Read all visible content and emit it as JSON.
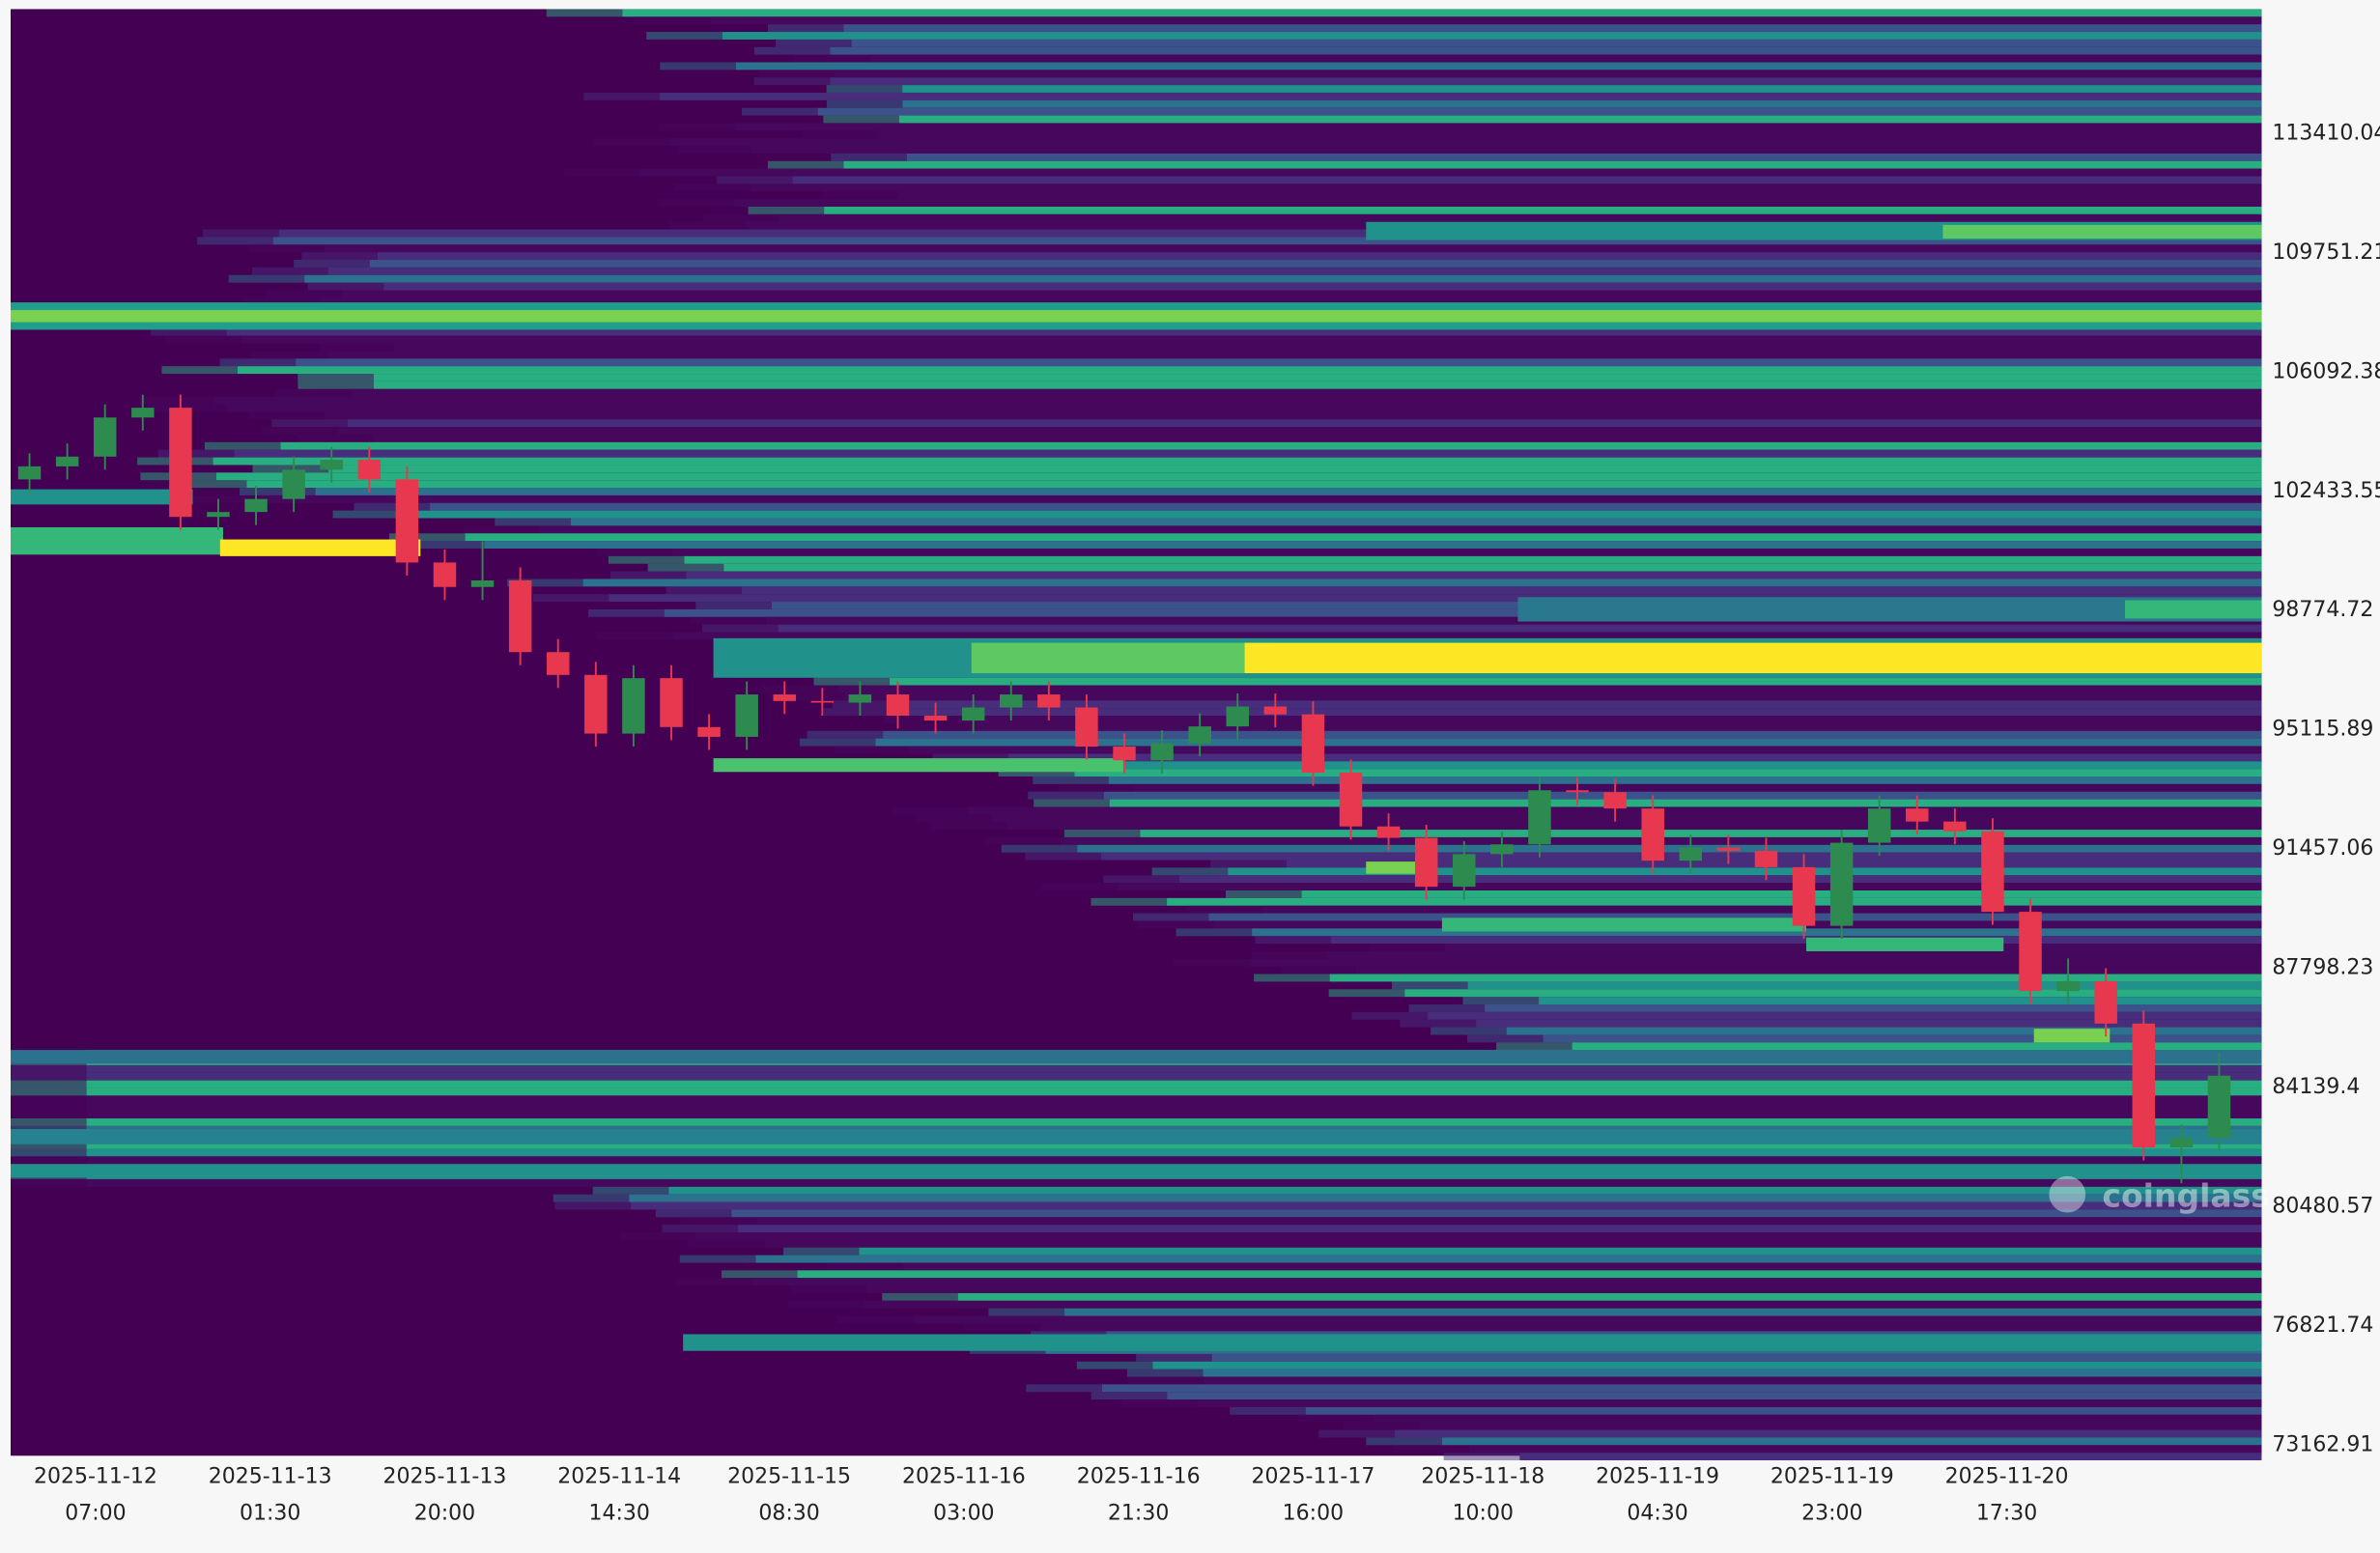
{
  "chart_data": {
    "type": "candlestick",
    "watermark": "coinglass",
    "xlim": [
      "2025-11-11 22:00",
      "2025-11-21 20:30"
    ],
    "xticks": [
      "2025-11-12 07:00",
      "2025-11-13 01:30",
      "2025-11-13 20:00",
      "2025-11-14 14:30",
      "2025-11-15 08:30",
      "2025-11-16 03:00",
      "2025-11-16 21:30",
      "2025-11-17 16:00",
      "2025-11-18 10:00",
      "2025-11-19 04:30",
      "2025-11-19 23:00",
      "2025-11-20 17:30"
    ],
    "ylim": [
      72836,
      117234
    ],
    "yticks": [
      113410.04,
      109751.21,
      106092.38,
      102433.55,
      98774.72,
      95115.89,
      91457.06,
      87798.23,
      84139.4,
      80480.57,
      76821.74,
      73162.91
    ],
    "grid": false,
    "up_color": "#2e8b4f",
    "down_color": "#e8384f",
    "x": [
      "2025-11-11 22:00",
      "2025-11-12 02:00",
      "2025-11-12 06:00",
      "2025-11-12 10:00",
      "2025-11-12 14:00",
      "2025-11-12 18:00",
      "2025-11-12 22:00",
      "2025-11-13 02:00",
      "2025-11-13 06:00",
      "2025-11-13 10:00",
      "2025-11-13 14:00",
      "2025-11-13 18:00",
      "2025-11-13 22:00",
      "2025-11-14 02:00",
      "2025-11-14 06:00",
      "2025-11-14 10:00",
      "2025-11-14 14:00",
      "2025-11-14 18:00",
      "2025-11-14 22:00",
      "2025-11-15 02:00",
      "2025-11-15 06:00",
      "2025-11-15 10:00",
      "2025-11-15 14:00",
      "2025-11-15 18:00",
      "2025-11-15 22:00",
      "2025-11-16 02:00",
      "2025-11-16 06:00",
      "2025-11-16 10:00",
      "2025-11-16 14:00",
      "2025-11-16 18:00",
      "2025-11-16 22:00",
      "2025-11-17 02:00",
      "2025-11-17 06:00",
      "2025-11-17 10:00",
      "2025-11-17 14:00",
      "2025-11-17 18:00",
      "2025-11-17 22:00",
      "2025-11-18 02:00",
      "2025-11-18 06:00",
      "2025-11-18 10:00",
      "2025-11-18 14:00",
      "2025-11-18 18:00",
      "2025-11-18 22:00",
      "2025-11-19 02:00",
      "2025-11-19 06:00",
      "2025-11-19 10:00",
      "2025-11-19 14:00",
      "2025-11-19 18:00",
      "2025-11-19 22:00",
      "2025-11-20 02:00",
      "2025-11-20 06:00",
      "2025-11-20 10:00",
      "2025-11-20 14:00",
      "2025-11-20 18:00",
      "2025-11-20 22:00",
      "2025-11-21 02:00",
      "2025-11-21 06:00",
      "2025-11-21 10:00",
      "2025-11-21 14:00"
    ],
    "open": [
      102800,
      103200,
      103500,
      104700,
      105000,
      101650,
      101800,
      102200,
      103100,
      103400,
      102800,
      100250,
      99500,
      99700,
      97500,
      96800,
      95000,
      96700,
      95200,
      94900,
      96200,
      96000,
      95950,
      96200,
      95550,
      95400,
      95800,
      96200,
      95800,
      94600,
      94180,
      94700,
      95220,
      95830,
      95590,
      93800,
      92150,
      91800,
      90300,
      91300,
      91600,
      93260,
      93200,
      92700,
      91100,
      91500,
      91400,
      90900,
      89100,
      91650,
      92700,
      92300,
      92000,
      89530,
      87100,
      87400,
      86100,
      82300,
      82600
    ],
    "high": [
      103600,
      103900,
      105100,
      105400,
      105400,
      102200,
      102600,
      103500,
      103800,
      103800,
      103200,
      100650,
      100900,
      100100,
      97900,
      97200,
      97100,
      97100,
      95600,
      96600,
      96600,
      96400,
      96600,
      96600,
      95950,
      96200,
      96600,
      96600,
      96200,
      95000,
      95100,
      95620,
      96230,
      96230,
      95990,
      94200,
      92550,
      92200,
      91700,
      92000,
      93660,
      93660,
      93600,
      93100,
      91900,
      91900,
      91800,
      91300,
      92050,
      93100,
      93100,
      92700,
      92400,
      89930,
      88100,
      87800,
      86500,
      83000,
      85200
    ],
    "low": [
      102400,
      102800,
      103100,
      104300,
      101250,
      101250,
      101400,
      101800,
      102700,
      102400,
      99850,
      99100,
      99100,
      97100,
      96400,
      94600,
      94600,
      94800,
      94500,
      94500,
      95600,
      95550,
      95550,
      95150,
      95000,
      95000,
      95400,
      95400,
      94200,
      93780,
      93780,
      94300,
      94820,
      95190,
      93400,
      91750,
      91400,
      89900,
      89900,
      90900,
      91200,
      92800,
      92300,
      90700,
      90700,
      91000,
      90500,
      88700,
      88700,
      91250,
      91900,
      91600,
      89130,
      86700,
      86700,
      85700,
      81900,
      81200,
      82200
    ],
    "close": [
      103200,
      103500,
      104700,
      105000,
      101650,
      101800,
      102200,
      103100,
      103400,
      102800,
      100250,
      99500,
      99700,
      97500,
      96800,
      95000,
      96700,
      95200,
      94900,
      96200,
      96000,
      95950,
      96200,
      95550,
      95400,
      95800,
      96200,
      95800,
      94600,
      94180,
      94700,
      95220,
      95830,
      95590,
      93800,
      92150,
      91800,
      90300,
      91300,
      91600,
      93260,
      93200,
      92700,
      91100,
      91500,
      91400,
      90900,
      89100,
      91650,
      92700,
      92300,
      92000,
      89530,
      87100,
      87400,
      86100,
      82300,
      82600,
      84500
    ]
  }
}
